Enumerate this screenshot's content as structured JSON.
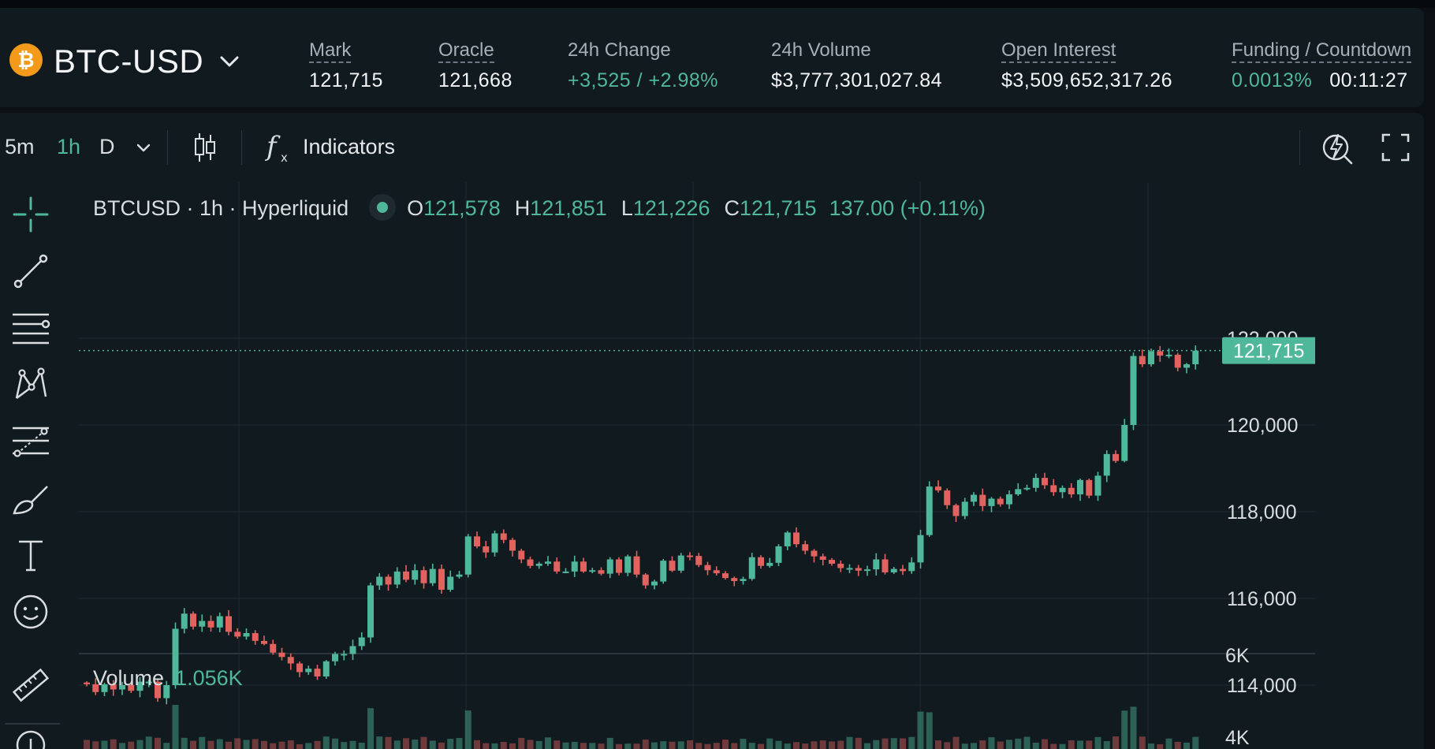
{
  "market": {
    "symbol": "BTC-USD",
    "coin_icon": "bitcoin-icon",
    "stats": {
      "mark": {
        "label": "Mark",
        "value": "121,715"
      },
      "oracle": {
        "label": "Oracle",
        "value": "121,668"
      },
      "change": {
        "label": "24h Change",
        "value": "+3,525 / +2.98%"
      },
      "volume": {
        "label": "24h Volume",
        "value": "$3,777,301,027.84"
      },
      "open_interest": {
        "label": "Open Interest",
        "value": "$3,509,652,317.26"
      },
      "funding": {
        "label": "Funding / Countdown",
        "rate": "0.0013%",
        "countdown": "00:11:27"
      }
    }
  },
  "toolbar": {
    "timeframes": [
      "5m",
      "1h",
      "D"
    ],
    "active_timeframe": "1h",
    "indicators_label": "Indicators",
    "icons": [
      "chevron-down-icon",
      "candles-icon",
      "function-icon",
      "lightning-clock-icon",
      "fullscreen-icon"
    ]
  },
  "tools": [
    "crosshair-icon",
    "trend-line-icon",
    "horizontal-lines-icon",
    "pattern-icon",
    "fib-icon",
    "brush-icon",
    "text-icon",
    "emoji-icon",
    "ruler-icon",
    "zoom-icon"
  ],
  "legend": {
    "title": "BTCUSD · 1h · Hyperliquid",
    "o_label": "O",
    "o": "121,578",
    "h_label": "H",
    "h": "121,851",
    "l_label": "L",
    "l": "121,226",
    "c_label": "C",
    "c": "121,715",
    "change": "137.00 (+0.11%)"
  },
  "volume_legend": {
    "label": "Volume",
    "value": "1.056K"
  },
  "colors": {
    "up": "#4fb79a",
    "down": "#e1625f",
    "bg": "#111a1f",
    "grid": "#1f2a30",
    "text": "#d9dde0"
  },
  "chart_data": {
    "type": "candlestick",
    "price_ticks": [
      "122,000",
      "120,000",
      "118,000",
      "116,000",
      "114,000"
    ],
    "volume_ticks": [
      "6K",
      "4K"
    ],
    "last_price_label": "121,715",
    "last_price": 121715,
    "close_series": [
      114020,
      113840,
      114020,
      113900,
      114000,
      113870,
      114080,
      114080,
      113700,
      114000,
      115300,
      115650,
      115350,
      115480,
      115330,
      115590,
      115230,
      115120,
      115200,
      115020,
      114950,
      114750,
      114650,
      114500,
      114300,
      114380,
      114200,
      114550,
      114720,
      114720,
      114900,
      115100,
      116300,
      116500,
      116320,
      116620,
      116430,
      116650,
      116350,
      116680,
      116200,
      116500,
      116550,
      117430,
      117200,
      117060,
      117500,
      117350,
      117100,
      116900,
      116750,
      116800,
      116850,
      116620,
      116620,
      116850,
      116620,
      116650,
      116570,
      116900,
      116590,
      116970,
      116550,
      116300,
      116390,
      116870,
      116640,
      116990,
      116980,
      116770,
      116650,
      116580,
      116470,
      116400,
      116450,
      116950,
      116750,
      116820,
      117200,
      117520,
      117250,
      117100,
      116970,
      116890,
      116800,
      116700,
      116700,
      116640,
      116670,
      116900,
      116600,
      116680,
      116630,
      116830,
      117460,
      118580,
      118490,
      118150,
      117900,
      118230,
      118390,
      118130,
      118300,
      118170,
      118400,
      118520,
      118550,
      118780,
      118610,
      118450,
      118550,
      118400,
      118730,
      118370,
      118830,
      119330,
      119170,
      120000,
      121590,
      121400,
      121700,
      121600,
      121620,
      121320,
      121400,
      121715
    ]
  }
}
